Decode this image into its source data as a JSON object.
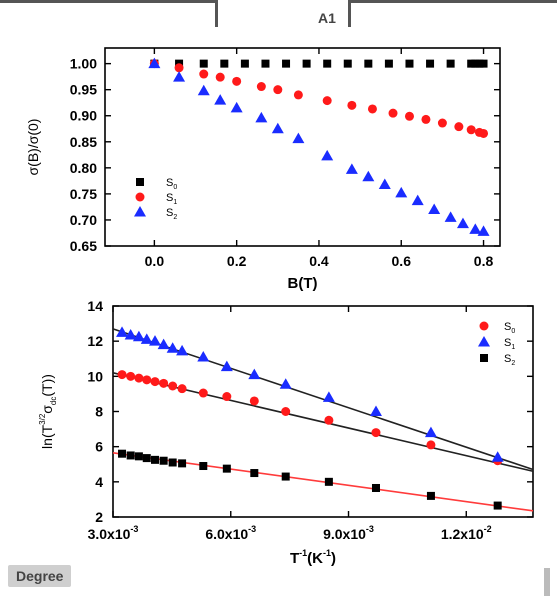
{
  "colors": {
    "black": "#000000",
    "red": "#ff1a1a",
    "blue": "#1a2cff",
    "fit_black": "#222222",
    "fit_red": "#ff3b3b"
  },
  "fragments": {
    "top_right_label": "A1",
    "bottom_left_label": "Degree"
  },
  "chart_data": [
    {
      "type": "scatter",
      "xlabel": "B(T)",
      "ylabel": "σ(B)/σ(0)",
      "xlim": [
        -0.12,
        0.84
      ],
      "ylim": [
        0.65,
        1.03
      ],
      "xticks": [
        0.0,
        0.2,
        0.4,
        0.6,
        0.8
      ],
      "xtick_labels": [
        "0.0",
        "0.2",
        "0.4",
        "0.6",
        "0.8"
      ],
      "yticks": [
        0.65,
        0.7,
        0.75,
        0.8,
        0.85,
        0.9,
        0.95,
        1.0
      ],
      "ytick_labels": [
        "0.65",
        "0.70",
        "0.75",
        "0.80",
        "0.85",
        "0.90",
        "0.95",
        "1.00"
      ],
      "legend_position": "bottom-left",
      "series": [
        {
          "name": "S0",
          "name_main": "S",
          "name_sub": "0",
          "marker": "square",
          "color": "#000000",
          "x": [
            0.0,
            0.06,
            0.12,
            0.17,
            0.22,
            0.27,
            0.32,
            0.37,
            0.42,
            0.47,
            0.52,
            0.57,
            0.62,
            0.67,
            0.72,
            0.77,
            0.78,
            0.79,
            0.8
          ],
          "y": [
            1.0,
            1.0,
            1.0,
            1.0,
            1.0,
            1.0,
            1.0,
            1.0,
            1.0,
            1.0,
            1.0,
            1.0,
            1.0,
            1.0,
            1.0,
            1.0,
            1.0,
            1.0,
            1.0
          ]
        },
        {
          "name": "S1",
          "name_main": "S",
          "name_sub": "1",
          "marker": "circle",
          "color": "#ff1a1a",
          "x": [
            0.0,
            0.06,
            0.12,
            0.16,
            0.2,
            0.26,
            0.3,
            0.35,
            0.42,
            0.48,
            0.53,
            0.58,
            0.62,
            0.66,
            0.7,
            0.74,
            0.77,
            0.79,
            0.8
          ],
          "y": [
            1.0,
            0.992,
            0.98,
            0.974,
            0.966,
            0.956,
            0.95,
            0.94,
            0.929,
            0.92,
            0.913,
            0.905,
            0.899,
            0.893,
            0.886,
            0.879,
            0.873,
            0.868,
            0.866
          ]
        },
        {
          "name": "S2",
          "name_main": "S",
          "name_sub": "2",
          "marker": "triangle",
          "color": "#1a2cff",
          "x": [
            0.0,
            0.06,
            0.12,
            0.16,
            0.2,
            0.26,
            0.3,
            0.35,
            0.42,
            0.48,
            0.52,
            0.56,
            0.6,
            0.64,
            0.68,
            0.72,
            0.75,
            0.78,
            0.8
          ],
          "y": [
            1.0,
            0.974,
            0.948,
            0.93,
            0.915,
            0.896,
            0.875,
            0.856,
            0.823,
            0.797,
            0.783,
            0.768,
            0.752,
            0.737,
            0.72,
            0.705,
            0.693,
            0.682,
            0.678
          ]
        }
      ]
    },
    {
      "type": "scatter",
      "xlabel_main": "T",
      "xlabel_sup": "-1",
      "xlabel_tail": "(K",
      "xlabel_sup2": "-1",
      "xlabel_end": ")",
      "ylabel_main": "ln(T",
      "ylabel_sup": "3/2",
      "ylabel_mid": "σ",
      "ylabel_sub": "dc",
      "ylabel_end": "(T))",
      "xlim": [
        0.003,
        0.0137
      ],
      "ylim": [
        2,
        14
      ],
      "xticks": [
        0.003,
        0.006,
        0.009,
        0.012
      ],
      "xtick_mantissa": [
        "3.0x10",
        "6.0x10",
        "9.0x10",
        "1.2x10"
      ],
      "xtick_exponent": [
        "-3",
        "-3",
        "-3",
        "-2"
      ],
      "yticks": [
        2,
        4,
        6,
        8,
        10,
        12,
        14
      ],
      "ytick_labels": [
        "2",
        "4",
        "6",
        "8",
        "10",
        "12",
        "14"
      ],
      "legend_position": "top-right",
      "series": [
        {
          "name": "S0",
          "name_main": "S",
          "name_sub": "0",
          "marker": "circle",
          "color": "#ff1a1a",
          "x": [
            0.00323,
            0.00345,
            0.00366,
            0.00386,
            0.00407,
            0.00429,
            0.00452,
            0.00476,
            0.0053,
            0.0059,
            0.0066,
            0.0074,
            0.0085,
            0.0097,
            0.0111,
            0.0128
          ],
          "y": [
            10.1,
            10.0,
            9.9,
            9.8,
            9.7,
            9.6,
            9.45,
            9.3,
            9.05,
            8.85,
            8.6,
            8.0,
            7.5,
            6.8,
            6.1,
            5.2
          ],
          "fit": {
            "x": [
              0.003,
              0.0137
            ],
            "y": [
              10.2,
              4.6
            ],
            "color": "#222222"
          }
        },
        {
          "name": "S1",
          "name_main": "S",
          "name_sub": "1",
          "marker": "triangle",
          "color": "#1a2cff",
          "x": [
            0.00323,
            0.00345,
            0.00366,
            0.00386,
            0.00407,
            0.00429,
            0.00452,
            0.00476,
            0.0053,
            0.0059,
            0.0066,
            0.0074,
            0.0085,
            0.0097,
            0.0111,
            0.0128
          ],
          "y": [
            12.5,
            12.35,
            12.25,
            12.1,
            12.0,
            11.8,
            11.6,
            11.45,
            11.1,
            10.55,
            10.1,
            9.55,
            8.8,
            8.0,
            6.8,
            5.4
          ],
          "fit": {
            "x": [
              0.003,
              0.0137
            ],
            "y": [
              12.7,
              4.7
            ],
            "color": "#222222"
          }
        },
        {
          "name": "S2",
          "name_main": "S",
          "name_sub": "2",
          "marker": "square",
          "color": "#000000",
          "x": [
            0.00323,
            0.00345,
            0.00366,
            0.00386,
            0.00407,
            0.00429,
            0.00452,
            0.00476,
            0.0053,
            0.0059,
            0.0066,
            0.0074,
            0.0085,
            0.0097,
            0.0111,
            0.0128
          ],
          "y": [
            5.6,
            5.5,
            5.45,
            5.35,
            5.25,
            5.2,
            5.1,
            5.05,
            4.9,
            4.75,
            4.5,
            4.3,
            4.0,
            3.65,
            3.2,
            2.65
          ],
          "fit": {
            "x": [
              0.003,
              0.0137
            ],
            "y": [
              5.65,
              2.35
            ],
            "color": "#ff3b3b"
          }
        }
      ]
    }
  ]
}
